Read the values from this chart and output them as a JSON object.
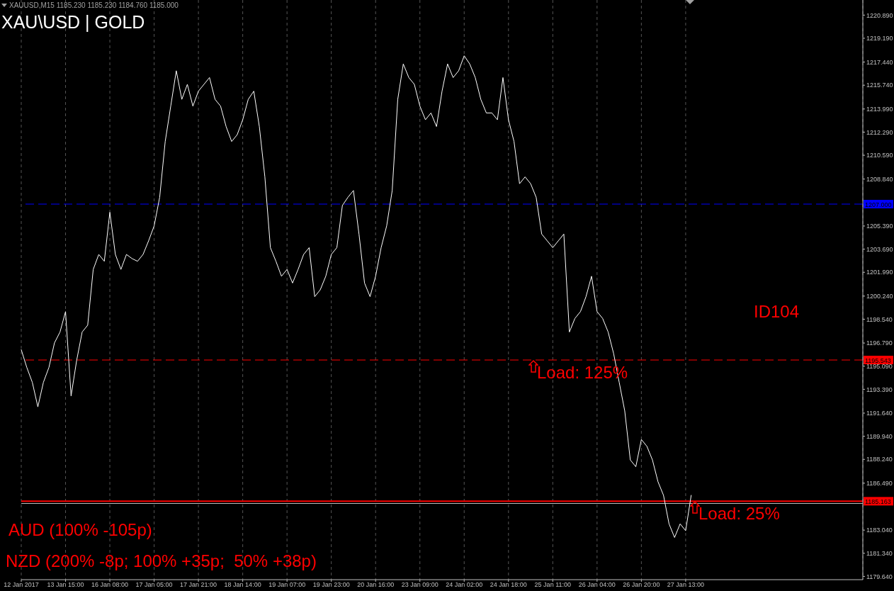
{
  "chart_data": {
    "type": "line",
    "title": "XAU\\USD | GOLD",
    "subtitle": "XAUUSD,M15  1185.230 1185.230 1184.760 1185.000",
    "annotations": [
      "ID104",
      "AUD (100% -105p)",
      "NZD (200% -8p; 100% +35p;  50% +38p)",
      {
        "text": "Load: 125%",
        "y": 1195.543
      },
      {
        "text": "Load: 25%",
        "y": 1185.163
      }
    ],
    "categories": [
      "12 Jan 2017",
      null,
      null,
      null,
      null,
      null,
      null,
      null,
      "13 Jan 15:00",
      null,
      null,
      null,
      null,
      null,
      null,
      null,
      "16 Jan 08:00",
      null,
      null,
      null,
      null,
      null,
      null,
      null,
      "17 Jan 05:00",
      null,
      null,
      null,
      null,
      null,
      null,
      null,
      "17 Jan 21:00",
      null,
      null,
      null,
      null,
      null,
      null,
      null,
      "18 Jan 14:00",
      null,
      null,
      null,
      null,
      null,
      null,
      null,
      "19 Jan 07:00",
      null,
      null,
      null,
      null,
      null,
      null,
      null,
      "19 Jan 23:00",
      null,
      null,
      null,
      null,
      null,
      null,
      null,
      "20 Jan 16:00",
      null,
      null,
      null,
      null,
      null,
      null,
      null,
      "23 Jan 09:00",
      null,
      null,
      null,
      null,
      null,
      null,
      null,
      "24 Jan 02:00",
      null,
      null,
      null,
      null,
      null,
      null,
      null,
      "24 Jan 18:00",
      null,
      null,
      null,
      null,
      null,
      null,
      null,
      "25 Jan 11:00",
      null,
      null,
      null,
      null,
      null,
      null,
      null,
      "26 Jan 04:00",
      null,
      null,
      null,
      null,
      null,
      null,
      null,
      "26 Jan 20:00",
      null,
      null,
      null,
      null,
      null,
      null,
      null,
      "27 Jan 13:00",
      null,
      null,
      null,
      null,
      null,
      null,
      null,
      null,
      null,
      null,
      null,
      null,
      null,
      null,
      null,
      null,
      null,
      null,
      null,
      null,
      null,
      null,
      null,
      null,
      null,
      null,
      null,
      null,
      null,
      null,
      null,
      null
    ],
    "series": [
      {
        "color": "#ffffff",
        "values": [
          1196.3,
          1195.0,
          1193.9,
          1192.1,
          1193.9,
          1195.0,
          1196.8,
          1197.6,
          1199.1,
          1192.9,
          1195.5,
          1197.6,
          1198.1,
          1202.2,
          1203.3,
          1202.8,
          1206.4,
          1203.3,
          1202.2,
          1203.3,
          1203.0,
          1202.8,
          1203.3,
          1204.3,
          1205.4,
          1207.5,
          1211.6,
          1214.2,
          1216.8,
          1214.7,
          1215.8,
          1214.2,
          1215.3,
          1215.8,
          1216.3,
          1214.7,
          1214.2,
          1212.7,
          1211.6,
          1212.1,
          1213.2,
          1214.7,
          1215.3,
          1212.7,
          1209.0,
          1203.8,
          1202.8,
          1201.7,
          1202.2,
          1201.2,
          1202.2,
          1203.3,
          1203.8,
          1200.2,
          1200.7,
          1201.7,
          1203.3,
          1203.8,
          1206.9,
          1207.5,
          1208.0,
          1204.8,
          1201.2,
          1200.2,
          1201.7,
          1203.8,
          1205.4,
          1208.0,
          1214.7,
          1217.3,
          1216.3,
          1215.8,
          1214.2,
          1213.2,
          1213.7,
          1212.7,
          1215.3,
          1217.3,
          1216.3,
          1216.8,
          1217.9,
          1217.3,
          1216.3,
          1214.7,
          1213.7,
          1213.7,
          1213.2,
          1216.3,
          1213.2,
          1211.6,
          1208.5,
          1209.0,
          1208.5,
          1207.5,
          1204.8,
          1204.3,
          1203.8,
          1204.3,
          1204.8,
          1197.6,
          1198.6,
          1199.1,
          1200.2,
          1201.7,
          1199.1,
          1198.6,
          1197.6,
          1196.0,
          1193.9,
          1191.8,
          1188.2,
          1187.7,
          1189.7,
          1189.2,
          1188.2,
          1186.6,
          1185.6,
          1183.5,
          1182.5,
          1183.5,
          1183.0,
          1185.6,
          null,
          null,
          null,
          null,
          null,
          null,
          null,
          null,
          null,
          null,
          null,
          null,
          null,
          null,
          null,
          null,
          null,
          null,
          null,
          null,
          null,
          null,
          null,
          null,
          null,
          null,
          null,
          null,
          null,
          null,
          null
        ]
      }
    ],
    "ylim": [
      1179.4,
      1222.0
    ],
    "yticks": [
      {
        "value": 1220.89,
        "label": "1220.890"
      },
      {
        "value": 1219.19,
        "label": "1219.190"
      },
      {
        "value": 1217.44,
        "label": "1217.440"
      },
      {
        "value": 1215.74,
        "label": "1215.740"
      },
      {
        "value": 1213.99,
        "label": "1213.990"
      },
      {
        "value": 1212.29,
        "label": "1212.290"
      },
      {
        "value": 1210.59,
        "label": "1210.590"
      },
      {
        "value": 1208.84,
        "label": "1208.840"
      },
      {
        "value": 1205.39,
        "label": "1205.390"
      },
      {
        "value": 1203.69,
        "label": "1203.690"
      },
      {
        "value": 1201.99,
        "label": "1201.990"
      },
      {
        "value": 1200.24,
        "label": "1200.240"
      },
      {
        "value": 1198.54,
        "label": "1198.540"
      },
      {
        "value": 1196.79,
        "label": "1196.790"
      },
      {
        "value": 1195.09,
        "label": "1195.090"
      },
      {
        "value": 1193.39,
        "label": "1193.390"
      },
      {
        "value": 1191.64,
        "label": "1191.640"
      },
      {
        "value": 1189.94,
        "label": "1189.940"
      },
      {
        "value": 1188.24,
        "label": "1188.240"
      },
      {
        "value": 1186.49,
        "label": "1186.490"
      },
      {
        "value": 1183.04,
        "label": "1183.040"
      },
      {
        "value": 1181.34,
        "label": "1181.340"
      },
      {
        "value": 1179.64,
        "label": "1179.640"
      }
    ],
    "grid": "x",
    "legend": false,
    "marker": "none",
    "line_style": "solid",
    "ref_lines": [
      {
        "axis": "y",
        "value": 1207.0,
        "label": "1207.000",
        "color": "#0000ff",
        "line_style": "dashed"
      },
      {
        "axis": "y",
        "value": 1195.543,
        "label": "1195.543",
        "color": "#ff0000",
        "line_style": "dashed"
      },
      {
        "axis": "y",
        "value": 1185.163,
        "label": "1185.163",
        "color": "#ff0000",
        "line_style": "solid"
      },
      {
        "axis": "y",
        "value": 1185.0,
        "color": "#c0c0c0",
        "line_style": "solid"
      }
    ]
  }
}
